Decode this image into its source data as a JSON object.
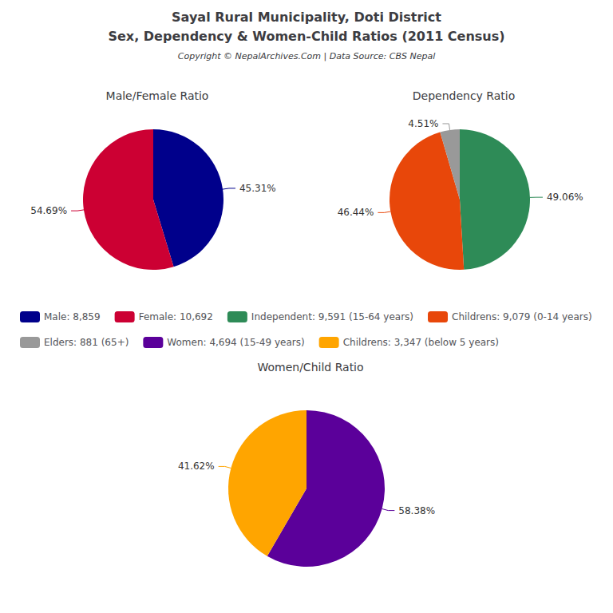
{
  "title": "Sayal Rural Municipality, Doti District",
  "subtitle": "Sex, Dependency & Women-Child Ratios (2011 Census)",
  "annotations": [
    "Copyright © NepalArchives.Com | Data Source: CBS Nepal"
  ],
  "chart_data": [
    {
      "type": "pie",
      "title": "Male/Female Ratio",
      "categories": [
        "Male: 8,859",
        "Female: 10,692"
      ],
      "values": [
        45.31,
        54.69
      ],
      "value_labels": [
        "45.31%",
        "54.69%"
      ],
      "colors": [
        "#00008B",
        "#CC0033"
      ],
      "data_labels": true,
      "legend": "center"
    },
    {
      "type": "pie",
      "title": "Dependency Ratio",
      "categories": [
        "Independent: 9,591 (15-64 years)",
        "Childrens: 9,079 (0-14 years)",
        "Elders: 881 (65+)"
      ],
      "values": [
        49.06,
        46.44,
        4.51
      ],
      "value_labels": [
        "49.06%",
        "46.44%",
        "4.51%"
      ],
      "colors": [
        "#2E8B57",
        "#E8470A",
        "#999999"
      ],
      "data_labels": true,
      "legend": "center"
    },
    {
      "type": "pie",
      "title": "Women/Child Ratio",
      "categories": [
        "Women: 4,694 (15-49 years)",
        "Childrens: 3,347 (below 5 years)"
      ],
      "values": [
        58.38,
        41.62
      ],
      "value_labels": [
        "58.38%",
        "41.62%"
      ],
      "colors": [
        "#5B009A",
        "#FFA500"
      ],
      "data_labels": true,
      "legend": "center"
    }
  ]
}
